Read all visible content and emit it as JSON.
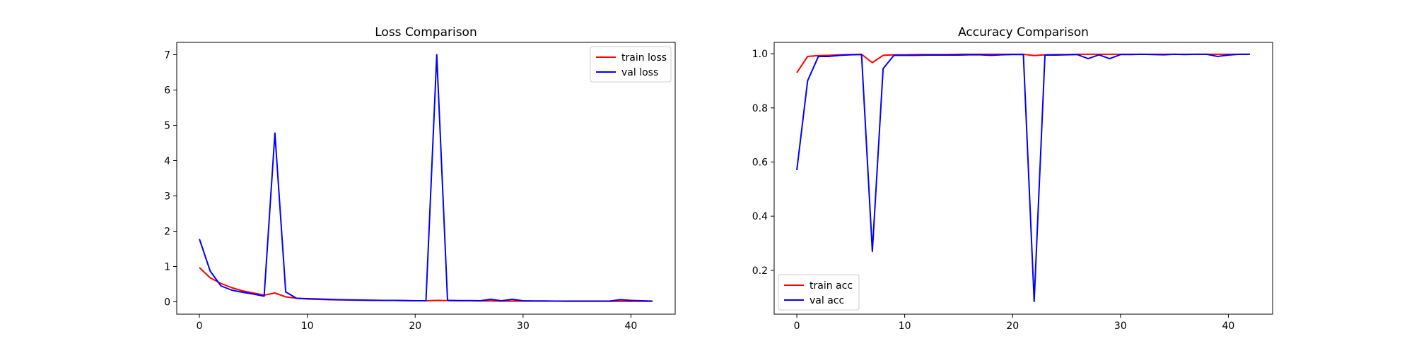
{
  "chart_data": [
    {
      "type": "line",
      "title": "Loss Comparison",
      "xlabel": "",
      "ylabel": "",
      "xlim": [
        -2.1,
        44.1
      ],
      "ylim": [
        -0.35,
        7.35
      ],
      "xticks": [
        0,
        10,
        20,
        30,
        40
      ],
      "yticks": [
        0,
        1,
        2,
        3,
        4,
        5,
        6,
        7
      ],
      "xtick_labels": [
        "0",
        "10",
        "20",
        "30",
        "40"
      ],
      "ytick_labels": [
        "0",
        "1",
        "2",
        "3",
        "4",
        "5",
        "6",
        "7"
      ],
      "grid": false,
      "legend": "top-right",
      "series": [
        {
          "name": "train loss",
          "color": "#ff0000",
          "x": [
            0,
            1,
            2,
            3,
            4,
            5,
            6,
            7,
            8,
            9,
            10,
            11,
            12,
            13,
            14,
            15,
            16,
            17,
            18,
            19,
            20,
            21,
            22,
            23,
            24,
            25,
            26,
            27,
            28,
            29,
            30,
            31,
            32,
            33,
            34,
            35,
            36,
            37,
            38,
            39,
            40,
            41,
            42
          ],
          "y": [
            0.97,
            0.68,
            0.52,
            0.4,
            0.31,
            0.25,
            0.19,
            0.25,
            0.14,
            0.1,
            0.08,
            0.07,
            0.06,
            0.055,
            0.05,
            0.045,
            0.04,
            0.04,
            0.04,
            0.035,
            0.03,
            0.03,
            0.04,
            0.035,
            0.03,
            0.03,
            0.025,
            0.025,
            0.02,
            0.02,
            0.02,
            0.02,
            0.02,
            0.02,
            0.015,
            0.015,
            0.015,
            0.015,
            0.015,
            0.015,
            0.015,
            0.015,
            0.015
          ]
        },
        {
          "name": "val loss",
          "color": "#0000ff",
          "x": [
            0,
            1,
            2,
            3,
            4,
            5,
            6,
            7,
            8,
            9,
            10,
            11,
            12,
            13,
            14,
            15,
            16,
            17,
            18,
            19,
            20,
            21,
            22,
            23,
            24,
            25,
            26,
            27,
            28,
            29,
            30,
            31,
            32,
            33,
            34,
            35,
            36,
            37,
            38,
            39,
            40,
            41,
            42
          ],
          "y": [
            1.78,
            0.87,
            0.45,
            0.33,
            0.27,
            0.22,
            0.16,
            4.78,
            0.28,
            0.1,
            0.09,
            0.08,
            0.07,
            0.06,
            0.055,
            0.05,
            0.045,
            0.04,
            0.04,
            0.035,
            0.03,
            0.03,
            7.0,
            0.04,
            0.035,
            0.035,
            0.03,
            0.07,
            0.03,
            0.07,
            0.03,
            0.025,
            0.025,
            0.02,
            0.02,
            0.02,
            0.02,
            0.02,
            0.02,
            0.06,
            0.04,
            0.03,
            0.02
          ]
        }
      ]
    },
    {
      "type": "line",
      "title": "Accuracy Comparison",
      "xlabel": "",
      "ylabel": "",
      "xlim": [
        -2.1,
        44.1
      ],
      "ylim": [
        0.038,
        1.042
      ],
      "xticks": [
        0,
        10,
        20,
        30,
        40
      ],
      "yticks": [
        0.2,
        0.4,
        0.6,
        0.8,
        1.0
      ],
      "xtick_labels": [
        "0",
        "10",
        "20",
        "30",
        "40"
      ],
      "ytick_labels": [
        "0.2",
        "0.4",
        "0.6",
        "0.8",
        "1.0"
      ],
      "grid": false,
      "legend": "bottom-left",
      "series": [
        {
          "name": "train acc",
          "color": "#ff0000",
          "x": [
            0,
            1,
            2,
            3,
            4,
            5,
            6,
            7,
            8,
            9,
            10,
            11,
            12,
            13,
            14,
            15,
            16,
            17,
            18,
            19,
            20,
            21,
            22,
            23,
            24,
            25,
            26,
            27,
            28,
            29,
            30,
            31,
            32,
            33,
            34,
            35,
            36,
            37,
            38,
            39,
            40,
            41,
            42
          ],
          "y": [
            0.93,
            0.99,
            0.993,
            0.994,
            0.996,
            0.997,
            0.998,
            0.967,
            0.994,
            0.996,
            0.996,
            0.997,
            0.997,
            0.997,
            0.997,
            0.998,
            0.998,
            0.998,
            0.998,
            0.998,
            0.998,
            0.998,
            0.993,
            0.996,
            0.997,
            0.997,
            0.998,
            0.998,
            0.998,
            0.998,
            0.998,
            0.998,
            0.998,
            0.998,
            0.998,
            0.998,
            0.998,
            0.998,
            0.998,
            0.998,
            0.998,
            0.998,
            0.998
          ]
        },
        {
          "name": "val acc",
          "color": "#0000ff",
          "x": [
            0,
            1,
            2,
            3,
            4,
            5,
            6,
            7,
            8,
            9,
            10,
            11,
            12,
            13,
            14,
            15,
            16,
            17,
            18,
            19,
            20,
            21,
            22,
            23,
            24,
            25,
            26,
            27,
            28,
            29,
            30,
            31,
            32,
            33,
            34,
            35,
            36,
            37,
            38,
            39,
            40,
            41,
            42
          ],
          "y": [
            0.57,
            0.9,
            0.99,
            0.99,
            0.994,
            0.996,
            0.997,
            0.27,
            0.945,
            0.994,
            0.994,
            0.994,
            0.995,
            0.995,
            0.995,
            0.995,
            0.996,
            0.996,
            0.994,
            0.996,
            0.997,
            0.997,
            0.085,
            0.995,
            0.995,
            0.996,
            0.997,
            0.982,
            0.996,
            0.982,
            0.997,
            0.997,
            0.998,
            0.997,
            0.996,
            0.998,
            0.997,
            0.998,
            0.998,
            0.99,
            0.995,
            0.998,
            0.998
          ]
        }
      ]
    }
  ]
}
